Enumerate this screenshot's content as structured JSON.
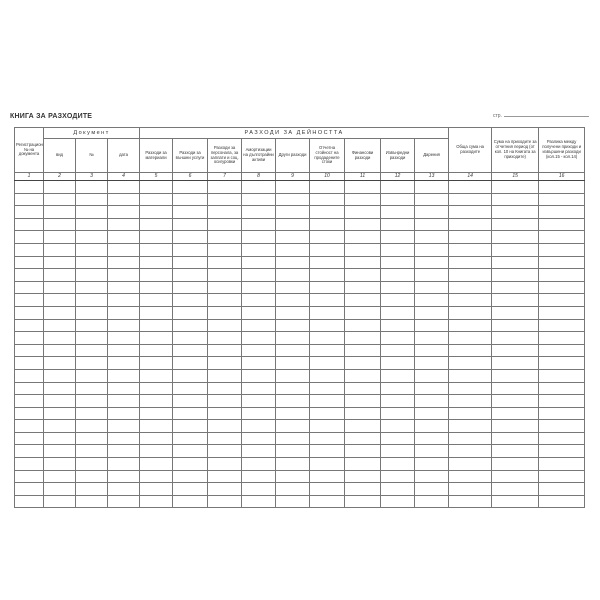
{
  "title": "КНИГА ЗА РАЗХОДИТЕ",
  "page_label": "стр.",
  "headers": {
    "reg": "Регистрационен № на документа",
    "document": "Документ",
    "activity": "РАЗХОДИ ЗА ДЕЙНОСТТА",
    "total": "Обща сума на разходите",
    "income": "Сума на приходите за отчетния период (от кол. 10 на Книгата за приходите)",
    "diff": "Разлика между получени приходи и извършени разходи (кол.15 - кол.14)",
    "doc_cols": [
      "вид",
      "№",
      "дата"
    ],
    "activity_cols": [
      "Разходи за материали",
      "Разходи за външни услуги",
      "Разходи за персонала, за заплати и соц. осигуровки",
      "Амортизации на дълготрайни активи",
      "Други разходи",
      "Отчетна стойност на продадените стоки",
      "Финансови разходи",
      "Извънредни разходи",
      "Дарения"
    ]
  },
  "column_numbers": [
    "1",
    "2",
    "3",
    "4",
    "5",
    "6",
    "7",
    "8",
    "9",
    "10",
    "11",
    "12",
    "13",
    "14",
    "15",
    "16"
  ]
}
